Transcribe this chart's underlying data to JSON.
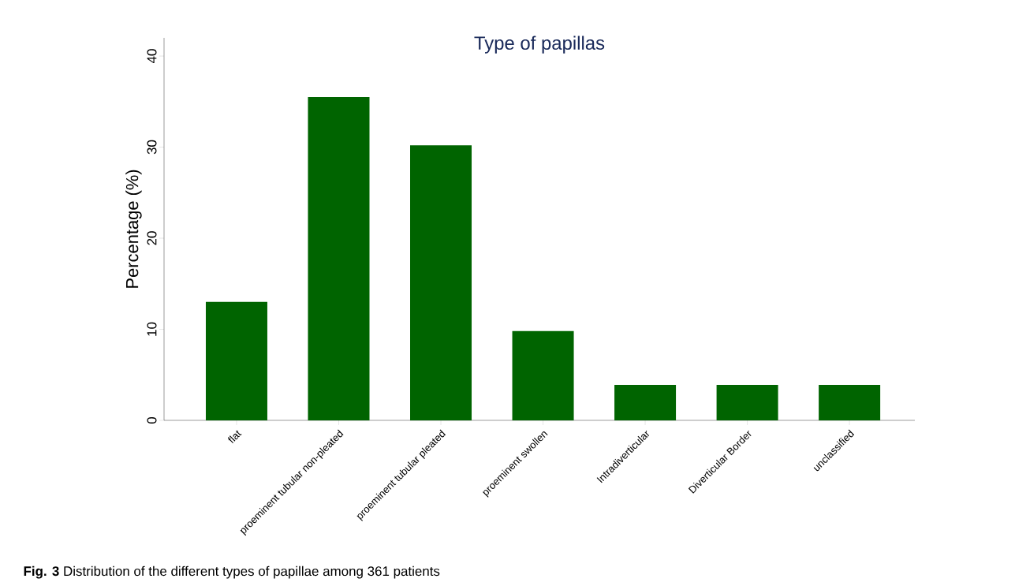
{
  "chart_data": {
    "type": "bar",
    "title": "Type of papillas",
    "ylabel": "Percentage (%)",
    "categories": [
      "flat",
      "proeminent tubular non-pleated",
      "proeminent tubular pleated",
      "proeminent swollen",
      "Intradiverticular",
      "Diverticular Border",
      "unclassified"
    ],
    "values": [
      13.0,
      35.5,
      30.2,
      9.8,
      3.9,
      3.9,
      3.9
    ],
    "color": "#006400",
    "ylim": [
      0,
      42
    ],
    "yticks": [
      0,
      10,
      20,
      30,
      40
    ],
    "grid": false,
    "annotations": [
      "**Fig. 3** Distribution of the different types of papillae among 361 patients"
    ]
  }
}
